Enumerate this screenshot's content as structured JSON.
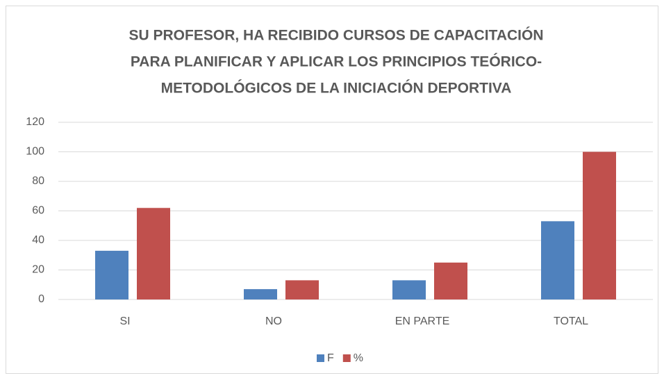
{
  "chart_data": {
    "type": "bar",
    "title": [
      "SU PROFESOR, HA RECIBIDO CURSOS DE CAPACITACIÓN",
      "PARA PLANIFICAR Y APLICAR LOS PRINCIPIOS TEÓRICO-",
      "METODOLÓGICOS DE LA INICIACIÓN DEPORTIVA"
    ],
    "categories": [
      "SI",
      "NO",
      "EN PARTE",
      "TOTAL"
    ],
    "series": [
      {
        "name": "F",
        "color": "#4f81bd",
        "values": [
          33,
          7,
          13,
          53
        ]
      },
      {
        "name": "%",
        "color": "#c0504d",
        "values": [
          62,
          13,
          25,
          100
        ]
      }
    ],
    "ylim": [
      0,
      120
    ],
    "yticks": [
      0,
      20,
      40,
      60,
      80,
      100,
      120
    ],
    "grid": true,
    "legend": "bottom"
  }
}
